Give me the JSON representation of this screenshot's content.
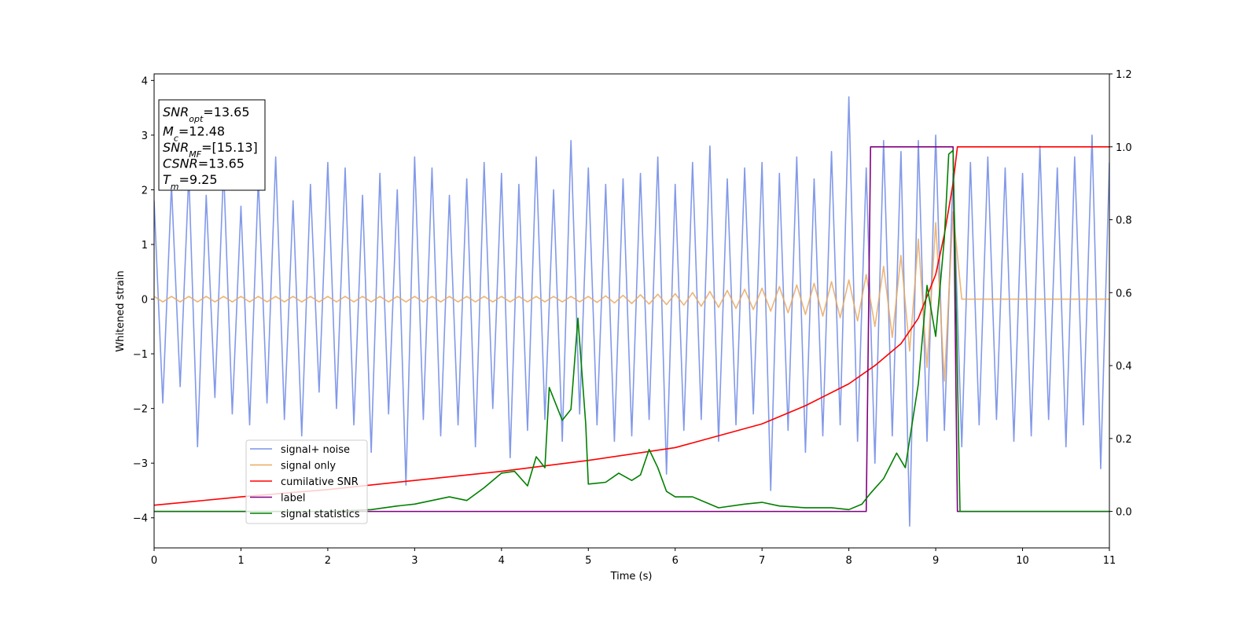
{
  "chart_data": {
    "type": "line",
    "xlabel": "Time (s)",
    "ylabel": "Whitened strain",
    "xlim": [
      0,
      11
    ],
    "xticks": [
      0,
      1,
      2,
      3,
      4,
      5,
      6,
      7,
      8,
      9,
      10,
      11
    ],
    "ylim": [
      -4.55,
      4.12
    ],
    "yticks": [
      {
        "value": -4,
        "label": "−4"
      },
      {
        "value": -3,
        "label": "−3"
      },
      {
        "value": -2,
        "label": "−2"
      },
      {
        "value": -1,
        "label": "−1"
      },
      0,
      1,
      2,
      3,
      4
    ],
    "y2lim": [
      -0.1,
      1.2
    ],
    "y2ticks": [
      {
        "value": 0,
        "label": "0.0"
      },
      {
        "value": 0.2,
        "label": "0.2"
      },
      {
        "value": 0.4,
        "label": "0.4"
      },
      {
        "value": 0.6,
        "label": "0.6"
      },
      {
        "value": 0.8,
        "label": "0.8"
      },
      {
        "value": 1.0,
        "label": "1.0"
      },
      {
        "value": 1.2,
        "label": "1.2"
      }
    ],
    "legend": "lower left",
    "annotation": [
      {
        "main": "SNR",
        "sub": "opt",
        "rest": "=13.65"
      },
      {
        "main": "M",
        "sub": "c",
        "rest": "=12.48"
      },
      {
        "main": "SNR",
        "sub": "MF",
        "rest": "=[15.13]"
      },
      {
        "main": "CSNR",
        "rest": "=13.65"
      },
      {
        "main": "T",
        "sub": "m",
        "rest": "=9.25"
      }
    ],
    "x": [
      0,
      0.1,
      0.2,
      0.3,
      0.4,
      0.5,
      0.6,
      0.7,
      0.8,
      0.9,
      1,
      1.1,
      1.2,
      1.3,
      1.4,
      1.5,
      1.6,
      1.7,
      1.8,
      1.9,
      2,
      2.1,
      2.2,
      2.3,
      2.4,
      2.5,
      2.6,
      2.7,
      2.8,
      2.9,
      3,
      3.1,
      3.2,
      3.3,
      3.4,
      3.5,
      3.6,
      3.7,
      3.8,
      3.9,
      4,
      4.1,
      4.2,
      4.3,
      4.4,
      4.5,
      4.6,
      4.7,
      4.8,
      4.9,
      5,
      5.1,
      5.2,
      5.3,
      5.4,
      5.5,
      5.6,
      5.7,
      5.8,
      5.9,
      6,
      6.1,
      6.2,
      6.3,
      6.4,
      6.5,
      6.6,
      6.7,
      6.8,
      6.9,
      7,
      7.1,
      7.2,
      7.3,
      7.4,
      7.5,
      7.6,
      7.7,
      7.8,
      7.9,
      8,
      8.1,
      8.2,
      8.3,
      8.4,
      8.5,
      8.6,
      8.7,
      8.8,
      8.9,
      9,
      9.1,
      9.2,
      9.3,
      9.4,
      9.5,
      9.6,
      9.7,
      9.8,
      9.9,
      10,
      10.1,
      10.2,
      10.3,
      10.4,
      10.5,
      10.6,
      10.7,
      10.8,
      10.9,
      11
    ],
    "series": [
      {
        "name": "signal+ noise",
        "color": "#7b93e8",
        "values": [
          1.8,
          -1.9,
          2.1,
          -1.6,
          2.3,
          -2.7,
          1.9,
          -1.8,
          2.4,
          -2.1,
          1.7,
          -2.3,
          2.2,
          -1.9,
          2.6,
          -2.2,
          1.8,
          -2.5,
          2.1,
          -1.7,
          2.5,
          -2.0,
          2.4,
          -2.3,
          1.9,
          -2.8,
          2.3,
          -2.1,
          2.0,
          -3.4,
          2.6,
          -2.2,
          2.4,
          -2.5,
          1.9,
          -2.3,
          2.2,
          -2.7,
          2.5,
          -2.0,
          2.3,
          -2.9,
          2.1,
          -2.4,
          2.6,
          -2.2,
          2.0,
          -2.6,
          2.9,
          -2.1,
          2.4,
          -2.3,
          2.1,
          -2.6,
          2.2,
          -2.5,
          2.3,
          -2.2,
          2.6,
          -3.2,
          2.1,
          -2.4,
          2.5,
          -2.2,
          2.8,
          -2.6,
          2.2,
          -2.3,
          2.4,
          -2.1,
          2.5,
          -3.5,
          2.3,
          -2.4,
          2.6,
          -2.8,
          2.2,
          -2.5,
          2.7,
          -2.3,
          3.7,
          -2.6,
          2.4,
          -3.0,
          2.9,
          -2.5,
          2.7,
          -4.15,
          2.9,
          -2.6,
          3.0,
          -2.4,
          2.3,
          -2.7,
          2.5,
          -2.3,
          2.6,
          -2.2,
          2.4,
          -2.6,
          2.3,
          -2.5,
          2.8,
          -2.2,
          2.4,
          -2.7,
          2.6,
          -2.3,
          3.0,
          -3.1,
          2.5
        ]
      },
      {
        "name": "signal only",
        "color": "#e8a860",
        "values": [
          0.05,
          -0.05,
          0.05,
          -0.05,
          0.05,
          -0.05,
          0.05,
          -0.05,
          0.05,
          -0.05,
          0.05,
          -0.05,
          0.05,
          -0.05,
          0.05,
          -0.05,
          0.05,
          -0.05,
          0.05,
          -0.05,
          0.05,
          -0.05,
          0.05,
          -0.05,
          0.05,
          -0.05,
          0.05,
          -0.05,
          0.05,
          -0.05,
          0.05,
          -0.05,
          0.05,
          -0.05,
          0.05,
          -0.05,
          0.05,
          -0.05,
          0.05,
          -0.05,
          0.05,
          -0.05,
          0.05,
          -0.05,
          0.05,
          -0.05,
          0.05,
          -0.05,
          0.05,
          -0.05,
          0.05,
          -0.06,
          0.06,
          -0.07,
          0.07,
          -0.08,
          0.08,
          -0.09,
          0.09,
          -0.1,
          0.1,
          -0.11,
          0.12,
          -0.13,
          0.14,
          -0.15,
          0.16,
          -0.17,
          0.18,
          -0.19,
          0.2,
          -0.22,
          0.23,
          -0.25,
          0.26,
          -0.28,
          0.29,
          -0.31,
          0.32,
          -0.34,
          0.35,
          -0.4,
          0.45,
          -0.5,
          0.6,
          -0.7,
          0.8,
          -0.95,
          1.1,
          -1.25,
          1.4,
          -1.5,
          1.6,
          0,
          0,
          0,
          0,
          0,
          0,
          0,
          0,
          0,
          0,
          0,
          0,
          0,
          0,
          0,
          0,
          0,
          0
        ]
      },
      {
        "name": "cumilative SNR",
        "color": "#ff0000",
        "axis": "y2",
        "x": [
          0,
          1,
          2,
          3,
          4,
          5,
          6,
          7,
          7.5,
          8,
          8.3,
          8.6,
          8.8,
          9.0,
          9.1,
          9.2,
          9.25,
          9.3,
          11
        ],
        "values": [
          0.017,
          0.04,
          0.06,
          0.085,
          0.11,
          0.14,
          0.175,
          0.24,
          0.29,
          0.35,
          0.4,
          0.46,
          0.53,
          0.65,
          0.76,
          0.9,
          1.0,
          1.0,
          1.0
        ]
      },
      {
        "name": "label",
        "color": "#800080",
        "axis": "y2",
        "x": [
          0,
          8.2,
          8.25,
          9.2,
          9.25,
          11
        ],
        "values": [
          0,
          0,
          1,
          1,
          0,
          0
        ]
      },
      {
        "name": "signal statistics",
        "color": "#008000",
        "axis": "y2",
        "x": [
          0,
          0.5,
          1,
          1.5,
          2,
          2.5,
          2.8,
          3,
          3.2,
          3.4,
          3.6,
          3.8,
          4.0,
          4.15,
          4.3,
          4.4,
          4.5,
          4.55,
          4.7,
          4.8,
          4.88,
          4.97,
          5.0,
          5.2,
          5.35,
          5.5,
          5.6,
          5.7,
          5.8,
          5.9,
          6.0,
          6.2,
          6.5,
          6.8,
          7.0,
          7.2,
          7.5,
          7.8,
          8.0,
          8.15,
          8.25,
          8.4,
          8.55,
          8.65,
          8.8,
          8.9,
          9.0,
          9.1,
          9.15,
          9.2,
          9.28,
          9.4,
          10,
          11
        ],
        "values": [
          0,
          0,
          0,
          0,
          0,
          0.005,
          0.015,
          0.02,
          0.03,
          0.04,
          0.03,
          0.065,
          0.105,
          0.11,
          0.07,
          0.15,
          0.12,
          0.34,
          0.25,
          0.28,
          0.53,
          0.24,
          0.075,
          0.08,
          0.105,
          0.085,
          0.1,
          0.17,
          0.12,
          0.055,
          0.04,
          0.04,
          0.01,
          0.02,
          0.025,
          0.015,
          0.01,
          0.01,
          0.005,
          0.02,
          0.05,
          0.09,
          0.16,
          0.12,
          0.35,
          0.62,
          0.48,
          0.75,
          0.98,
          0.99,
          0,
          0,
          0,
          0
        ]
      }
    ]
  }
}
